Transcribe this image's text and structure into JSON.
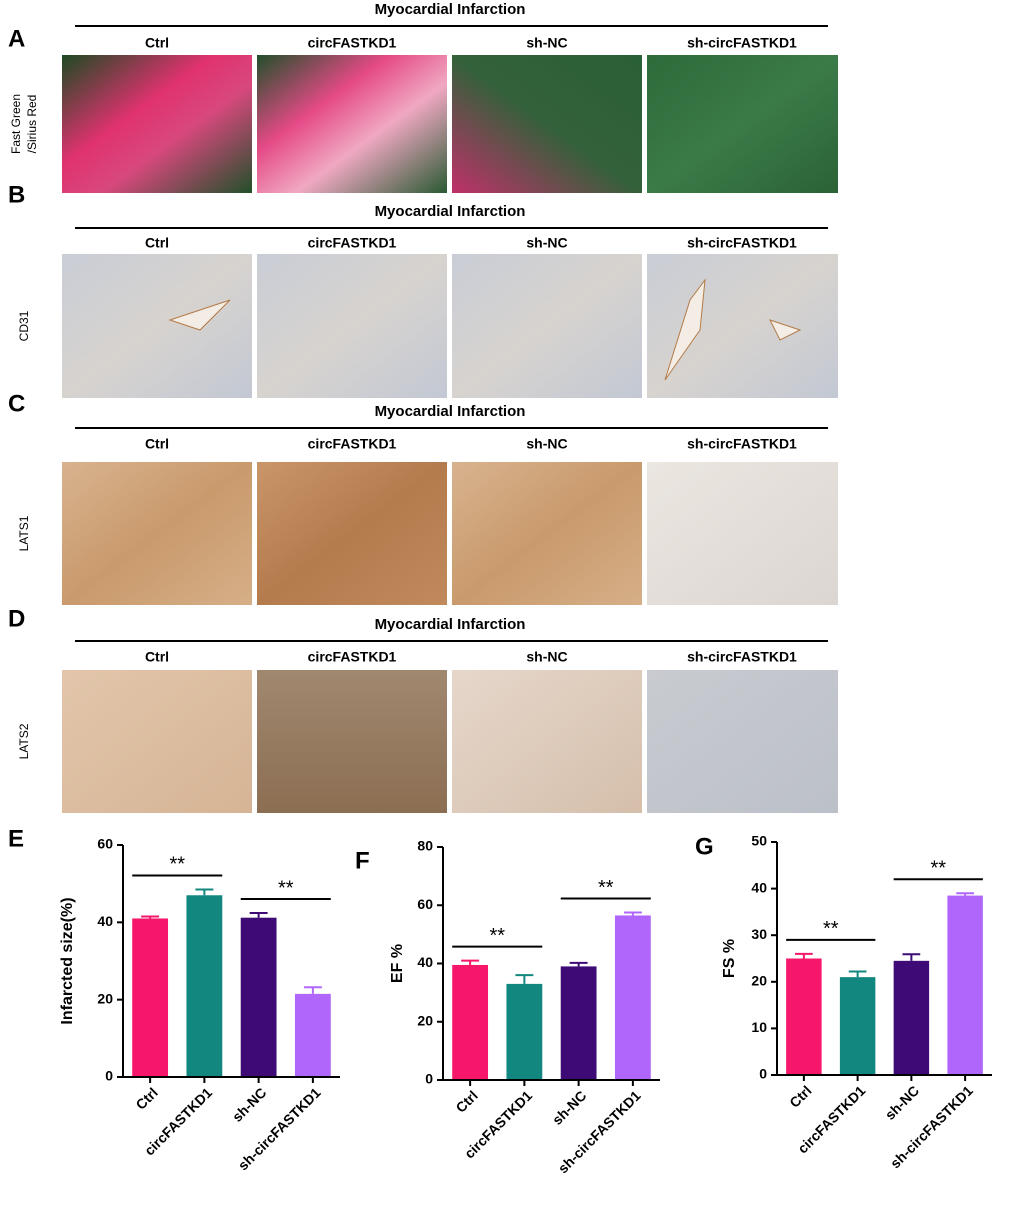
{
  "panels": [
    {
      "letter": "A",
      "header": "Myocardial Infarction",
      "groups": [
        "Ctrl",
        "circFASTKD1",
        "sh-NC",
        "sh-circFASTKD1"
      ],
      "stain": [
        "Fast Green",
        "/Sirius Red"
      ]
    },
    {
      "letter": "B",
      "header": "Myocardial Infarction",
      "groups": [
        "Ctrl",
        "circFASTKD1",
        "sh-NC",
        "sh-circFASTKD1"
      ],
      "stain": [
        "CD31"
      ]
    },
    {
      "letter": "C",
      "header": "Myocardial Infarction",
      "groups": [
        "Ctrl",
        "circFASTKD1",
        "sh-NC",
        "sh-circFASTKD1"
      ],
      "stain": [
        "LATS1"
      ]
    },
    {
      "letter": "D",
      "header": "Myocardial Infarction",
      "groups": [
        "Ctrl",
        "circFASTKD1",
        "sh-NC",
        "sh-circFASTKD1"
      ],
      "stain": [
        "LATS2"
      ]
    }
  ],
  "chart_data": [
    {
      "type": "bar",
      "letter": "E",
      "ylabel": "Infarcted size(%)",
      "categories": [
        "Ctrl",
        "circFASTKD1",
        "sh-NC",
        "sh-circFASTKD1"
      ],
      "values": [
        41,
        47,
        41.2,
        21.5
      ],
      "errors": [
        0.5,
        1.5,
        1.2,
        1.7
      ],
      "colors": [
        "#f7176a",
        "#128780",
        "#3d0a76",
        "#b066fa"
      ],
      "ylim": [
        0,
        60
      ],
      "yticks": [
        0,
        20,
        40,
        60
      ],
      "significance": [
        {
          "label": "**",
          "categories": [
            "Ctrl",
            "circFASTKD1"
          ]
        },
        {
          "label": "**",
          "categories": [
            "sh-NC",
            "sh-circFASTKD1"
          ]
        }
      ]
    },
    {
      "type": "bar",
      "letter": "F",
      "ylabel": "EF %",
      "categories": [
        "Ctrl",
        "circFASTKD1",
        "sh-NC",
        "sh-circFASTKD1"
      ],
      "values": [
        39.5,
        33,
        39,
        56.5
      ],
      "errors": [
        1.5,
        3,
        1.2,
        1
      ],
      "colors": [
        "#f7176a",
        "#128780",
        "#3d0a76",
        "#b066fa"
      ],
      "ylim": [
        0,
        80
      ],
      "yticks": [
        0,
        20,
        40,
        60,
        80
      ],
      "significance": [
        {
          "label": "**",
          "categories": [
            "Ctrl",
            "circFASTKD1"
          ]
        },
        {
          "label": "**",
          "categories": [
            "sh-NC",
            "sh-circFASTKD1"
          ]
        }
      ]
    },
    {
      "type": "bar",
      "letter": "G",
      "ylabel": "FS %",
      "categories": [
        "Ctrl",
        "circFASTKD1",
        "sh-NC",
        "sh-circFASTKD1"
      ],
      "values": [
        25,
        21,
        24.5,
        38.5
      ],
      "errors": [
        1,
        1.2,
        1.4,
        0.5
      ],
      "colors": [
        "#f7176a",
        "#128780",
        "#3d0a76",
        "#b066fa"
      ],
      "ylim": [
        0,
        50
      ],
      "yticks": [
        0,
        10,
        20,
        30,
        40,
        50
      ],
      "significance": [
        {
          "label": "**",
          "categories": [
            "Ctrl",
            "circFASTKD1"
          ]
        },
        {
          "label": "**",
          "categories": [
            "sh-NC",
            "sh-circFASTKD1"
          ]
        }
      ]
    }
  ]
}
